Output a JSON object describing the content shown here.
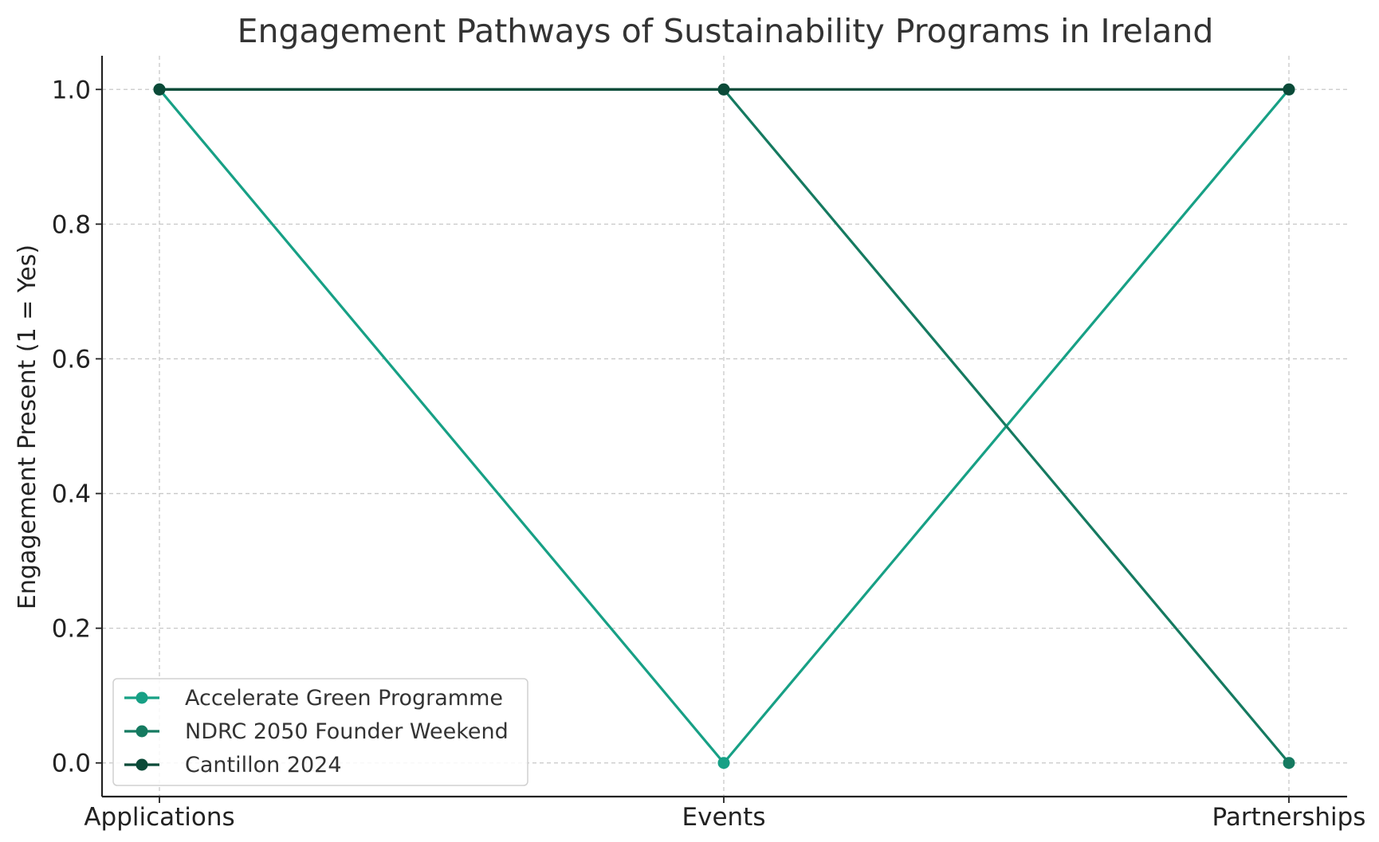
{
  "chart_data": {
    "type": "line",
    "title": "Engagement Pathways of Sustainability Programs in Ireland",
    "xlabel": "",
    "ylabel": "Engagement Present (1 = Yes)",
    "categories": [
      "Applications",
      "Events",
      "Partnerships"
    ],
    "ylim": [
      -0.05,
      1.05
    ],
    "yticks": [
      0.0,
      0.2,
      0.4,
      0.6,
      0.8,
      1.0
    ],
    "ytick_labels": [
      "0.0",
      "0.2",
      "0.4",
      "0.6",
      "0.8",
      "1.0"
    ],
    "grid": true,
    "legend_position": "lower-left",
    "series": [
      {
        "name": "Accelerate Green Programme",
        "values": [
          1,
          0,
          1
        ],
        "color": "#17a085"
      },
      {
        "name": "NDRC 2050 Founder Weekend",
        "values": [
          1,
          1,
          0
        ],
        "color": "#157a60"
      },
      {
        "name": "Cantillon 2024",
        "values": [
          1,
          1,
          1
        ],
        "color": "#0b4a38"
      }
    ]
  }
}
